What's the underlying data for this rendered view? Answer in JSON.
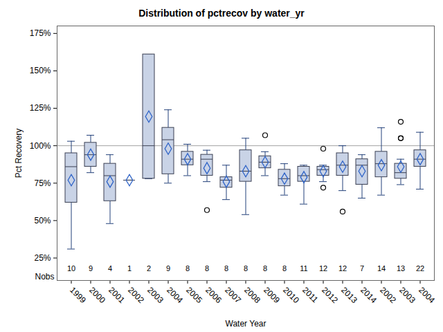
{
  "chart_data": {
    "type": "box",
    "title": "Distribution of pctrecov by water_yr",
    "x_label": "Water Year",
    "y_label": "Pct Recovery",
    "categories": [
      "1999",
      "2000",
      "2001",
      "2002",
      "2003",
      "2004",
      "2005",
      "2006",
      "2007",
      "2008",
      "2009",
      "2010",
      "2011",
      "2012",
      "2013",
      "2014",
      "2002",
      "2003",
      "2004"
    ],
    "boxes": [
      {
        "min": 31,
        "q1": 62,
        "median": 86,
        "q3": 95,
        "max": 103,
        "mean": 77,
        "outliers": []
      },
      {
        "min": 82,
        "q1": 86,
        "median": 94,
        "q3": 102,
        "max": 107,
        "mean": 94,
        "outliers": []
      },
      {
        "min": 48,
        "q1": 63,
        "median": 80,
        "q3": 88,
        "max": 94,
        "mean": 76,
        "outliers": []
      },
      {
        "min": 77,
        "q1": 77,
        "median": 77,
        "q3": 77,
        "max": 77,
        "mean": 77,
        "outliers": []
      },
      {
        "min": 78,
        "q1": 78,
        "median": 100,
        "q3": 161,
        "max": 161,
        "mean": 119.5,
        "outliers": []
      },
      {
        "min": 75,
        "q1": 81,
        "median": 104,
        "q3": 112,
        "max": 124,
        "mean": 98,
        "outliers": []
      },
      {
        "min": 80,
        "q1": 87,
        "median": 91,
        "q3": 96,
        "max": 101,
        "mean": 91,
        "outliers": []
      },
      {
        "min": 76,
        "q1": 80,
        "median": 91,
        "q3": 94,
        "max": 97,
        "mean": 85,
        "outliers": [
          57
        ]
      },
      {
        "min": 64,
        "q1": 72,
        "median": 77,
        "q3": 79,
        "max": 87,
        "mean": 76,
        "outliers": []
      },
      {
        "min": 54,
        "q1": 76,
        "median": 83,
        "q3": 97,
        "max": 105,
        "mean": 83,
        "outliers": []
      },
      {
        "min": 80,
        "q1": 85,
        "median": 89,
        "q3": 93,
        "max": 96,
        "mean": 89,
        "outliers": [
          107
        ]
      },
      {
        "min": 67,
        "q1": 73,
        "median": 78,
        "q3": 84,
        "max": 88,
        "mean": 78,
        "outliers": []
      },
      {
        "min": 61,
        "q1": 76,
        "median": 80,
        "q3": 86,
        "max": 87,
        "mean": 79,
        "outliers": []
      },
      {
        "min": 76,
        "q1": 80,
        "median": 84,
        "q3": 86,
        "max": 87,
        "mean": 83,
        "outliers": [
          98,
          72
        ]
      },
      {
        "min": 70,
        "q1": 80,
        "median": 87,
        "q3": 95,
        "max": 100,
        "mean": 86,
        "outliers": [
          56
        ]
      },
      {
        "min": 65,
        "q1": 74,
        "median": 87,
        "q3": 91,
        "max": 94,
        "mean": 83,
        "outliers": []
      },
      {
        "min": 67,
        "q1": 79,
        "median": 88,
        "q3": 96,
        "max": 112,
        "mean": 87,
        "outliers": []
      },
      {
        "min": 74,
        "q1": 78,
        "median": 82,
        "q3": 88,
        "max": 91,
        "mean": 86,
        "outliers": [
          116,
          105,
          105
        ]
      },
      {
        "min": 71,
        "q1": 86,
        "median": 91,
        "q3": 97,
        "max": 109,
        "mean": 91,
        "outliers": []
      }
    ],
    "nobs_label": "Nobs",
    "nobs": [
      10,
      9,
      4,
      1,
      2,
      9,
      8,
      8,
      8,
      8,
      8,
      8,
      11,
      12,
      12,
      7,
      14,
      13,
      22
    ],
    "reference_line": 100,
    "color": "#c9d3e6",
    "ylim": [
      10,
      180
    ],
    "yticks": [
      {
        "value": 25,
        "label": "25%"
      },
      {
        "value": 50,
        "label": "50%"
      },
      {
        "value": 75,
        "label": "75%"
      },
      {
        "value": 100,
        "label": "100%"
      },
      {
        "value": 125,
        "label": "125%"
      },
      {
        "value": 150,
        "label": "150%"
      },
      {
        "value": 175,
        "label": "175%"
      }
    ],
    "grid": false
  }
}
